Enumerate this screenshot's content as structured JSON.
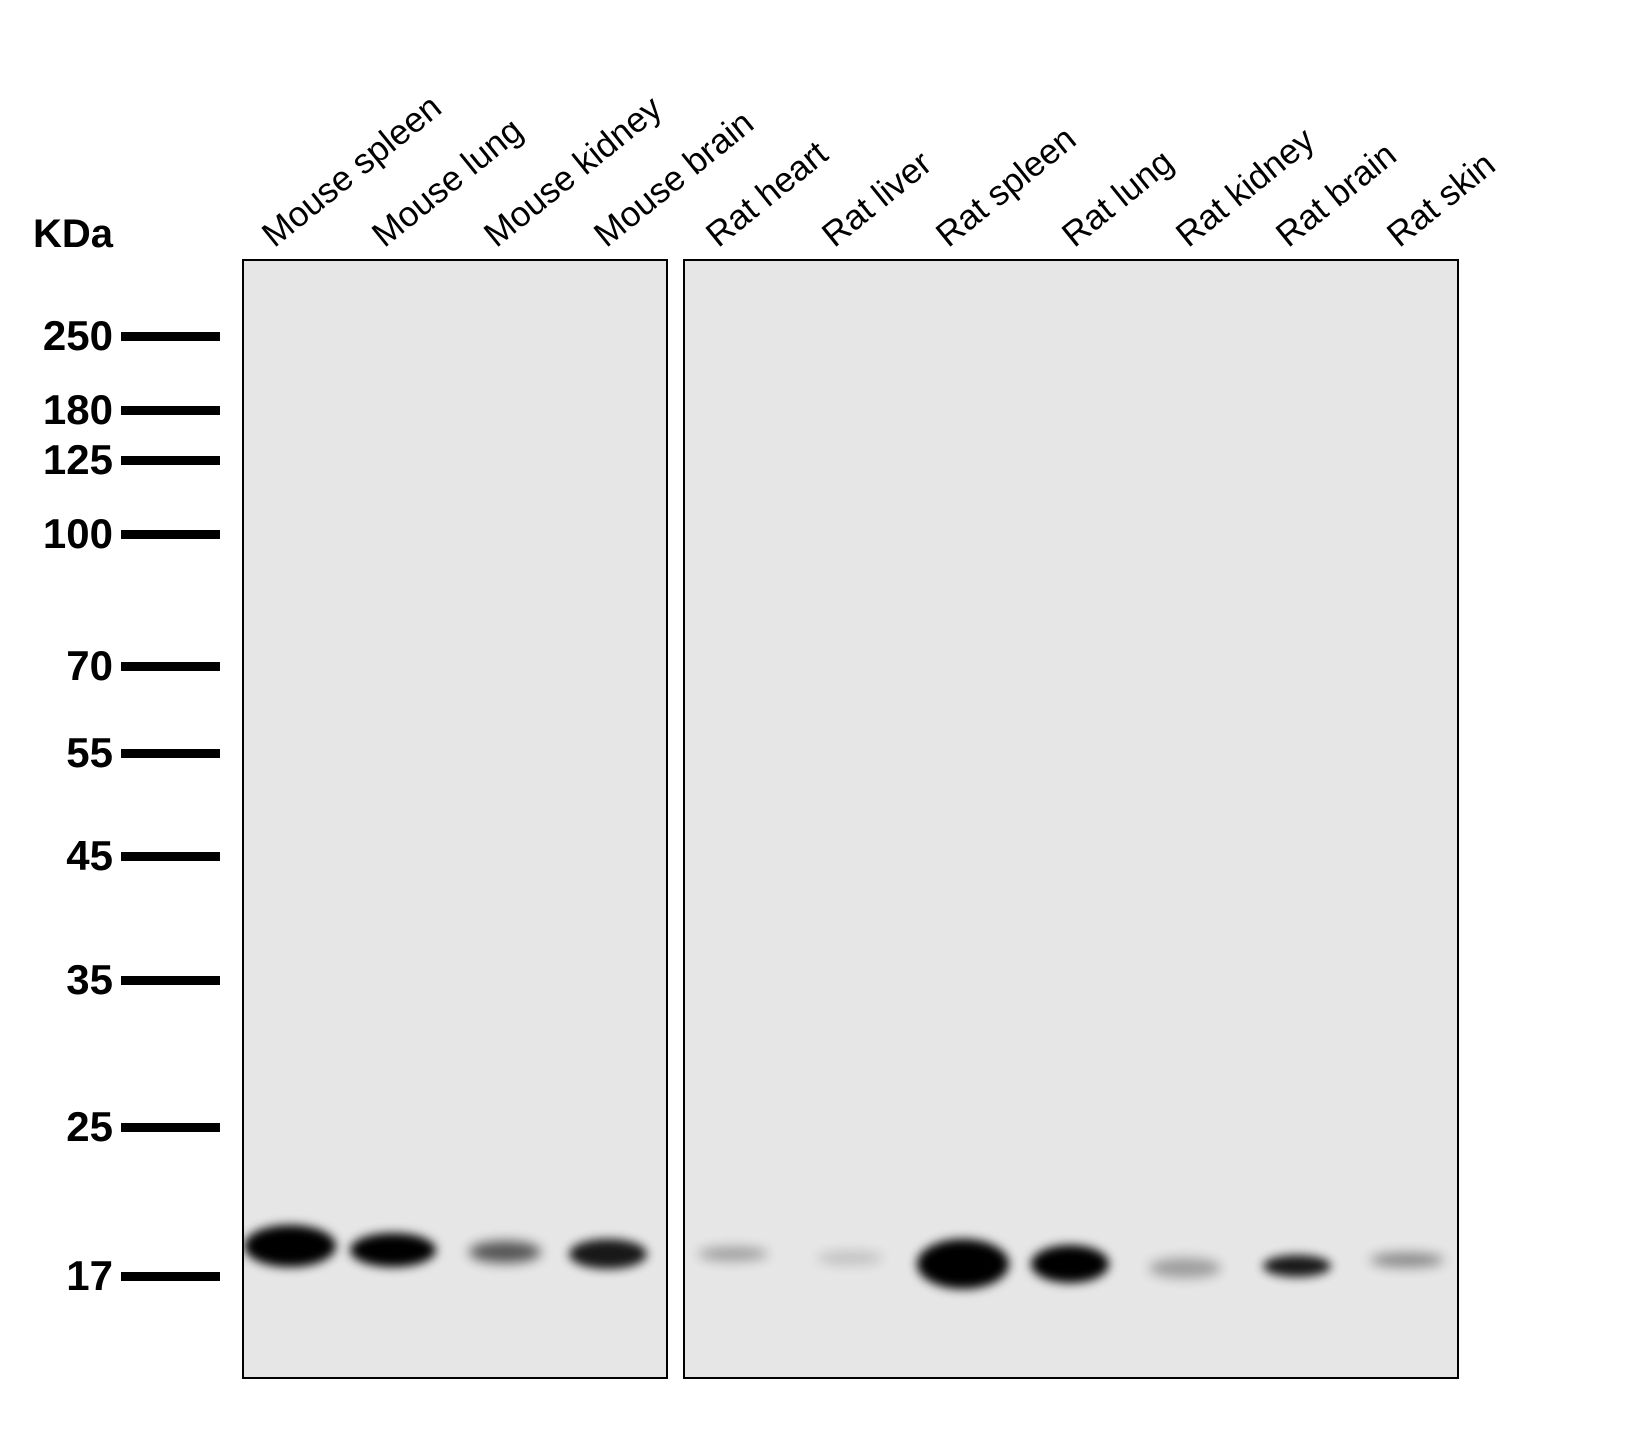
{
  "unit_label": "KDa",
  "markers": [
    {
      "label": "250",
      "kda": 250
    },
    {
      "label": "180",
      "kda": 180
    },
    {
      "label": "125",
      "kda": 125
    },
    {
      "label": "100",
      "kda": 100
    },
    {
      "label": "70",
      "kda": 70
    },
    {
      "label": "55",
      "kda": 55
    },
    {
      "label": "45",
      "kda": 45
    },
    {
      "label": "35",
      "kda": 35
    },
    {
      "label": "25",
      "kda": 25
    },
    {
      "label": "17",
      "kda": 17
    }
  ],
  "lanes": [
    {
      "label": "Mouse spleen",
      "panel": 1,
      "band_intensity": 1.0
    },
    {
      "label": "Mouse lung",
      "panel": 1,
      "band_intensity": 0.95
    },
    {
      "label": "Mouse kidney",
      "panel": 1,
      "band_intensity": 0.6
    },
    {
      "label": "Mouse brain",
      "panel": 1,
      "band_intensity": 0.85
    },
    {
      "label": "Rat heart",
      "panel": 2,
      "band_intensity": 0.3
    },
    {
      "label": "Rat liver",
      "panel": 2,
      "band_intensity": 0.15
    },
    {
      "label": "Rat spleen",
      "panel": 2,
      "band_intensity": 1.0
    },
    {
      "label": "Rat lung",
      "panel": 2,
      "band_intensity": 0.95
    },
    {
      "label": "Rat kidney",
      "panel": 2,
      "band_intensity": 0.3
    },
    {
      "label": "Rat brain",
      "panel": 2,
      "band_intensity": 0.85
    },
    {
      "label": "Rat skin",
      "panel": 2,
      "band_intensity": 0.4
    }
  ],
  "colors": {
    "membrane": "#e6e6e6",
    "band": "#000000"
  }
}
